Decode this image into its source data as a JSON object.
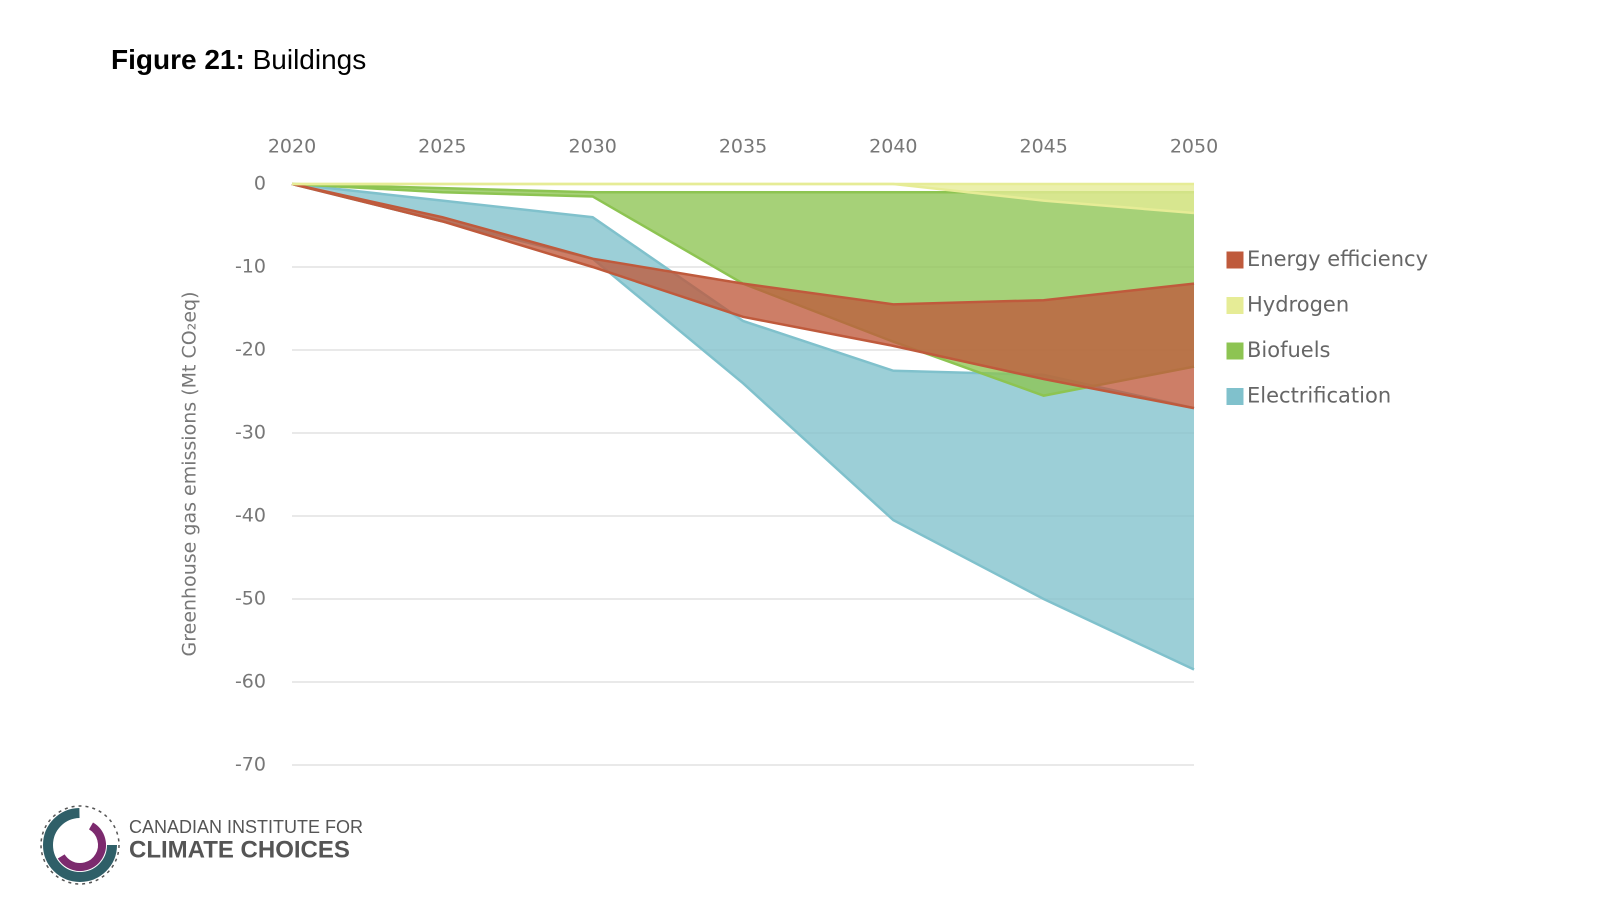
{
  "chart_data": {
    "type": "band",
    "figure_label": "Figure 21:",
    "title": "Buildings",
    "y_label": "Greenhouse gas emissions (Mt CO₂eq)",
    "x": [
      2020,
      2025,
      2030,
      2035,
      2040,
      2045,
      2050
    ],
    "xlim": [
      2020,
      2050
    ],
    "xticks": [
      2020,
      2025,
      2030,
      2035,
      2040,
      2045,
      2050
    ],
    "ylim": [
      -70,
      0
    ],
    "yticks": [
      0,
      -10,
      -20,
      -30,
      -40,
      -50,
      -60,
      -70
    ],
    "grid": true,
    "legend": "right",
    "series": [
      {
        "name": "Energy efficiency",
        "color": "#bf5a3c",
        "high": [
          0,
          -4,
          -9,
          -12,
          -14.5,
          -14,
          -12
        ],
        "low": [
          0,
          -4.5,
          -10,
          -16,
          -19.5,
          -23.5,
          -27
        ]
      },
      {
        "name": "Hydrogen",
        "color": "#e6ec96",
        "high": [
          0,
          0,
          0,
          0,
          0,
          0,
          0
        ],
        "low": [
          0,
          0,
          0,
          0,
          0,
          -2,
          -3.5
        ]
      },
      {
        "name": "Biofuels",
        "color": "#8dc452",
        "high": [
          0,
          -0.5,
          -1,
          -1,
          -1,
          -1,
          -1
        ],
        "low": [
          0,
          -1,
          -1.5,
          -12,
          -19,
          -25.5,
          -22
        ]
      },
      {
        "name": "Electrification",
        "color": "#80c1cc",
        "high": [
          0,
          -2,
          -4,
          -16.5,
          -22.5,
          -23,
          -27
        ],
        "low": [
          0,
          -4.5,
          -9,
          -24,
          -40.5,
          -50,
          -58.5
        ]
      }
    ]
  },
  "logo": {
    "line1": "CANADIAN INSTITUTE FOR",
    "line2": "CLIMATE CHOICES"
  }
}
